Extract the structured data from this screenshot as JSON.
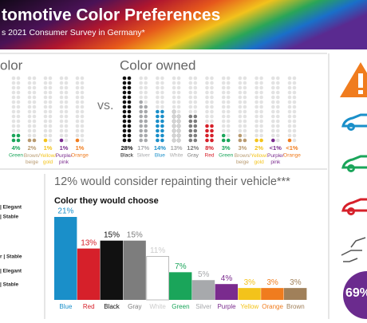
{
  "header": {
    "title": "tomotive Color Preferences",
    "subtitle": "s 2021 Consumer Survey in Germany*"
  },
  "vs": "vs.",
  "chart_data": [
    {
      "type": "dot",
      "title": "olor",
      "categories": [
        "Green",
        "Brown/beige",
        "Yellow/gold",
        "Purple/pink",
        "Orange"
      ],
      "values": [
        4,
        2,
        1,
        1,
        1
      ],
      "value_labels": [
        "4%",
        "2%",
        "1%",
        "1%",
        "1%"
      ],
      "colors": [
        "#1aa55a",
        "#b89a70",
        "#f3c31b",
        "#7a2b8e",
        "#f07c1e"
      ]
    },
    {
      "type": "dot",
      "title": "Color owned",
      "categories": [
        "Black",
        "Silver",
        "Blue",
        "White",
        "Gray",
        "Red",
        "Green",
        "Brown/beige",
        "Yellow/gold",
        "Purple/pink",
        "Orange"
      ],
      "values": [
        28,
        17,
        14,
        13,
        12,
        8,
        3,
        3,
        2,
        0.5,
        0.5
      ],
      "value_labels": [
        "28%",
        "17%",
        "14%",
        "13%",
        "12%",
        "8%",
        "3%",
        "3%",
        "2%",
        "<1%",
        "<1%"
      ],
      "colors": [
        "#111111",
        "#a7a9ac",
        "#1a8fc9",
        "#d4d4d4",
        "#7d7d7d",
        "#d6202a",
        "#1aa55a",
        "#b89a70",
        "#f3c31b",
        "#7a2b8e",
        "#f07c1e"
      ]
    },
    {
      "type": "bar",
      "title": "12% would consider repainting their vehicle***",
      "subtitle": "Color they would choose",
      "categories": [
        "Blue",
        "Red",
        "Black",
        "Gray",
        "White",
        "Green",
        "Silver",
        "Purple",
        "Yellow",
        "Orange",
        "Brown"
      ],
      "values": [
        21,
        13,
        15,
        15,
        11,
        7,
        5,
        4,
        3,
        3,
        3
      ],
      "value_labels": [
        "21%",
        "13%",
        "15%",
        "15%",
        "11%",
        "7%",
        "5%",
        "4%",
        "3%",
        "3%",
        "3%"
      ],
      "colors": [
        "#1a8fc9",
        "#d6202a",
        "#111111",
        "#7d7d7d",
        "#ffffff",
        "#1aa55a",
        "#a7a9ac",
        "#7a2b8e",
        "#f3c31b",
        "#f07c1e",
        "#a0805a"
      ]
    }
  ],
  "side_labels": [
    "| Elegant",
    "| Stable",
    "r | Stable",
    "| Elegant",
    "| Stable"
  ],
  "side_stat": "69%"
}
